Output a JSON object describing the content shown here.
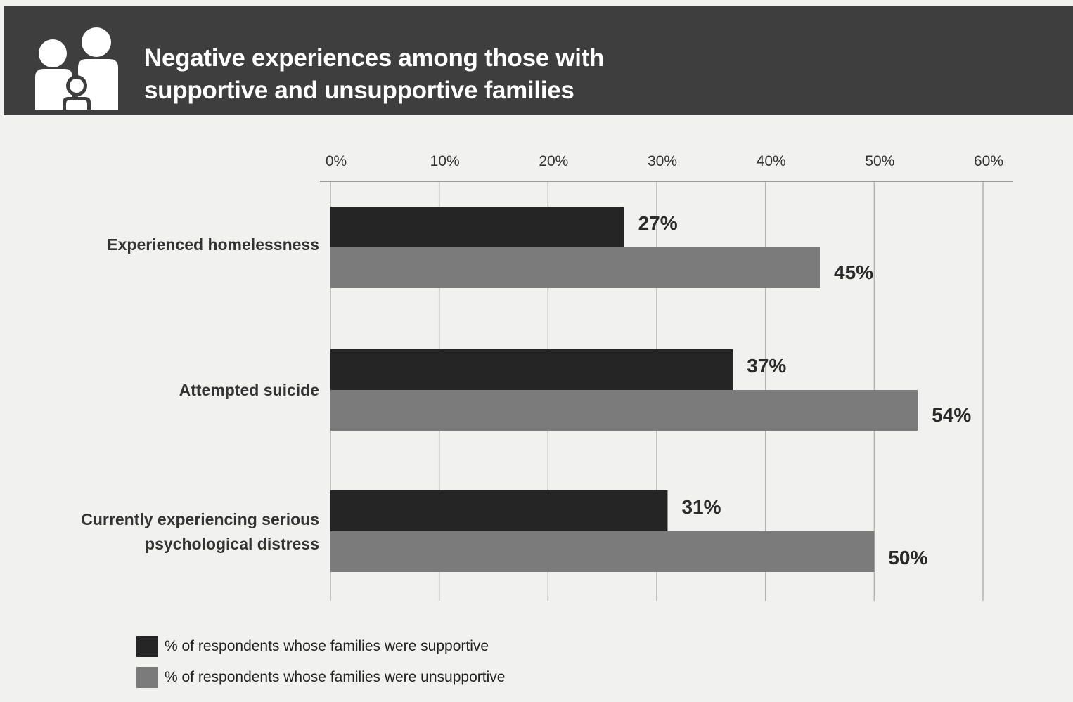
{
  "header": {
    "title_line1": "Negative experiences among those with",
    "title_line2": "supportive and unsupportive families",
    "icon": "family-icon"
  },
  "colors": {
    "banner": "#3e3e3e",
    "supportive": "#252525",
    "unsupportive": "#7b7b7b",
    "grid": "#b4b4b4"
  },
  "chart_data": {
    "type": "bar",
    "orientation": "horizontal",
    "categories": [
      "Experienced homelessness",
      "Attempted suicide",
      "Currently experiencing serious psychological distress"
    ],
    "category_lines": [
      [
        "Experienced homelessness"
      ],
      [
        "Attempted suicide"
      ],
      [
        "Currently experiencing serious",
        "psychological distress"
      ]
    ],
    "series": [
      {
        "name": "% of respondents whose families were supportive",
        "values": [
          27,
          37,
          31
        ],
        "labels": [
          "27%",
          "37%",
          "31%"
        ]
      },
      {
        "name": "% of respondents whose families were unsupportive",
        "values": [
          45,
          54,
          50
        ],
        "labels": [
          "45%",
          "54%",
          "50%"
        ]
      }
    ],
    "xlim": [
      0,
      60
    ],
    "xticks": [
      "0%",
      "10%",
      "20%",
      "30%",
      "40%",
      "50%",
      "60%"
    ],
    "xaxis_position": "top",
    "grid": true,
    "legend_placement": "bottom-left"
  },
  "legend": {
    "items": [
      {
        "label": "% of respondents whose families were supportive"
      },
      {
        "label": "% of respondents whose families were unsupportive"
      }
    ]
  }
}
